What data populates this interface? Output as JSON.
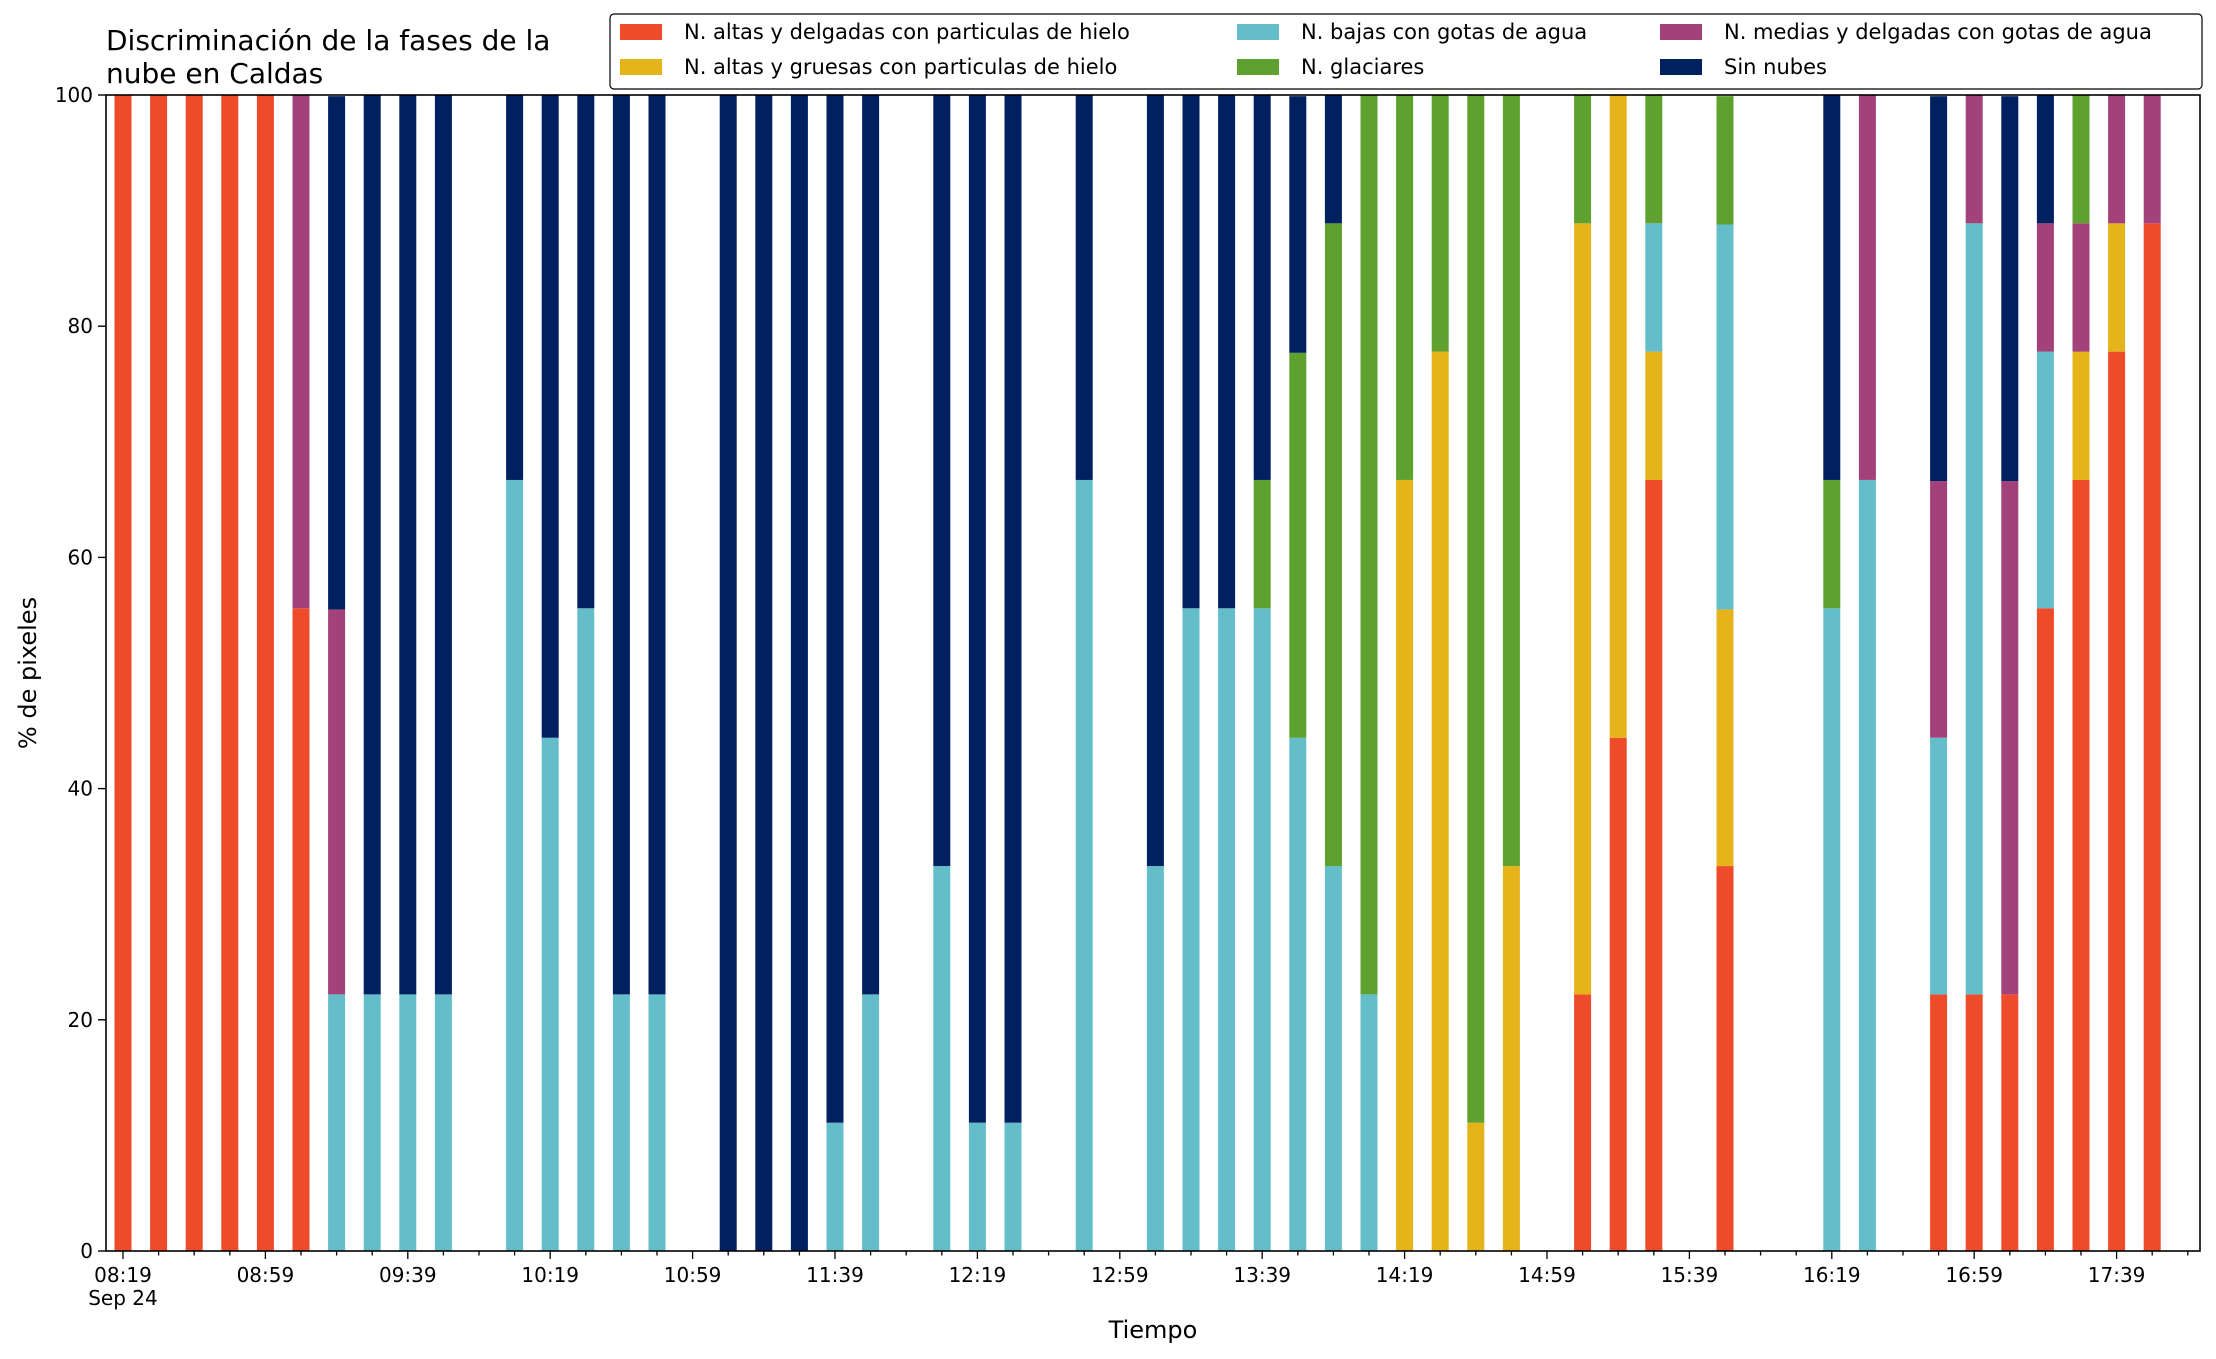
{
  "chart_data": {
    "type": "bar",
    "stacked": true,
    "title": "Discriminación de la fases de la\nnube en Caldas",
    "xlabel": "Tiempo",
    "ylabel": "% de pixeles",
    "ylim": [
      0,
      100
    ],
    "yticks": [
      0,
      20,
      40,
      60,
      80,
      100
    ],
    "grid": false,
    "legend_position": "top-right",
    "legend_columns": 3,
    "time_axis": {
      "start": "08:19",
      "end": "17:59",
      "step_minutes": 10,
      "major_step_minutes": 40,
      "labels": [
        "08:19",
        "08:59",
        "09:39",
        "10:19",
        "10:59",
        "11:39",
        "12:19",
        "12:59",
        "13:39",
        "14:19",
        "14:59",
        "15:39",
        "16:19",
        "16:59",
        "17:39"
      ],
      "first_label_date": "Sep 24"
    },
    "series_order": [
      "altas_delgadas",
      "altas_gruesas",
      "bajas_agua",
      "medias_agua",
      "glaciares",
      "sin_nubes"
    ],
    "series": [
      {
        "key": "altas_delgadas",
        "name": "N. altas y delgadas con particulas de hielo",
        "color": "#ee4b2b"
      },
      {
        "key": "altas_gruesas",
        "name": "N. altas y gruesas con particulas de hielo",
        "color": "#e5b41a"
      },
      {
        "key": "bajas_agua",
        "name": "N. bajas con gotas de agua",
        "color": "#63bec9"
      },
      {
        "key": "glaciares",
        "name": "N. glaciares",
        "color": "#5ea12e"
      },
      {
        "key": "medias_agua",
        "name": "N. medias y delgadas con gotas de agua",
        "color": "#a3427a"
      },
      {
        "key": "sin_nubes",
        "name": "Sin nubes",
        "color": "#00205f"
      }
    ],
    "bars": [
      {
        "time": "08:19",
        "altas_delgadas": 100
      },
      {
        "time": "08:29",
        "altas_delgadas": 100
      },
      {
        "time": "08:39",
        "altas_delgadas": 100
      },
      {
        "time": "08:49",
        "altas_delgadas": 100
      },
      {
        "time": "08:59",
        "altas_delgadas": 100
      },
      {
        "time": "09:09",
        "altas_delgadas": 55.6,
        "medias_agua": 44.4
      },
      {
        "time": "09:19",
        "bajas_agua": 22.2,
        "medias_agua": 33.3,
        "sin_nubes": 44.4
      },
      {
        "time": "09:29",
        "bajas_agua": 22.2,
        "sin_nubes": 77.8
      },
      {
        "time": "09:39",
        "bajas_agua": 22.2,
        "sin_nubes": 77.8
      },
      {
        "time": "09:49",
        "bajas_agua": 22.2,
        "sin_nubes": 77.8
      },
      {
        "time": "10:09",
        "bajas_agua": 66.7,
        "sin_nubes": 33.3
      },
      {
        "time": "10:19",
        "bajas_agua": 44.4,
        "sin_nubes": 55.6
      },
      {
        "time": "10:29",
        "bajas_agua": 55.6,
        "sin_nubes": 44.4
      },
      {
        "time": "10:39",
        "bajas_agua": 22.2,
        "sin_nubes": 77.8
      },
      {
        "time": "10:49",
        "bajas_agua": 22.2,
        "sin_nubes": 77.8
      },
      {
        "time": "11:09",
        "sin_nubes": 100
      },
      {
        "time": "11:19",
        "sin_nubes": 100
      },
      {
        "time": "11:29",
        "sin_nubes": 100
      },
      {
        "time": "11:39",
        "bajas_agua": 11.1,
        "sin_nubes": 88.9
      },
      {
        "time": "11:49",
        "bajas_agua": 22.2,
        "sin_nubes": 77.8
      },
      {
        "time": "12:09",
        "bajas_agua": 33.3,
        "sin_nubes": 66.7
      },
      {
        "time": "12:19",
        "bajas_agua": 11.1,
        "sin_nubes": 88.9
      },
      {
        "time": "12:29",
        "bajas_agua": 11.1,
        "sin_nubes": 88.9
      },
      {
        "time": "12:49",
        "bajas_agua": 66.7,
        "sin_nubes": 33.3
      },
      {
        "time": "13:09",
        "bajas_agua": 33.3,
        "sin_nubes": 66.7
      },
      {
        "time": "13:19",
        "bajas_agua": 55.6,
        "sin_nubes": 44.4
      },
      {
        "time": "13:29",
        "bajas_agua": 55.6,
        "sin_nubes": 44.4
      },
      {
        "time": "13:39",
        "bajas_agua": 55.6,
        "glaciares": 11.1,
        "sin_nubes": 33.3
      },
      {
        "time": "13:49",
        "bajas_agua": 44.4,
        "glaciares": 33.3,
        "sin_nubes": 22.2
      },
      {
        "time": "13:59",
        "bajas_agua": 33.3,
        "glaciares": 55.6,
        "sin_nubes": 11.1
      },
      {
        "time": "14:09",
        "bajas_agua": 22.2,
        "glaciares": 77.8
      },
      {
        "time": "14:19",
        "altas_gruesas": 66.7,
        "glaciares": 33.3
      },
      {
        "time": "14:29",
        "altas_gruesas": 77.8,
        "glaciares": 22.2
      },
      {
        "time": "14:39",
        "altas_gruesas": 11.1,
        "glaciares": 88.9
      },
      {
        "time": "14:49",
        "altas_gruesas": 33.3,
        "glaciares": 66.7
      },
      {
        "time": "15:09",
        "altas_delgadas": 22.2,
        "altas_gruesas": 66.7,
        "glaciares": 11.1
      },
      {
        "time": "15:19",
        "altas_delgadas": 44.4,
        "altas_gruesas": 55.6
      },
      {
        "time": "15:29",
        "altas_delgadas": 66.7,
        "altas_gruesas": 11.1,
        "bajas_agua": 11.1,
        "glaciares": 11.1
      },
      {
        "time": "15:49",
        "altas_delgadas": 33.3,
        "altas_gruesas": 22.2,
        "bajas_agua": 33.3,
        "glaciares": 11.1
      },
      {
        "time": "16:19",
        "bajas_agua": 55.6,
        "glaciares": 11.1,
        "sin_nubes": 33.3
      },
      {
        "time": "16:29",
        "bajas_agua": 66.7,
        "medias_agua": 33.3
      },
      {
        "time": "16:49",
        "altas_delgadas": 22.2,
        "bajas_agua": 22.2,
        "medias_agua": 22.2,
        "sin_nubes": 33.3
      },
      {
        "time": "16:59",
        "altas_delgadas": 22.2,
        "bajas_agua": 66.7,
        "medias_agua": 11.1
      },
      {
        "time": "17:09",
        "altas_delgadas": 22.2,
        "medias_agua": 44.4,
        "sin_nubes": 33.3
      },
      {
        "time": "17:19",
        "altas_delgadas": 55.6,
        "bajas_agua": 22.2,
        "medias_agua": 11.1,
        "sin_nubes": 11.1
      },
      {
        "time": "17:29",
        "altas_delgadas": 66.7,
        "altas_gruesas": 11.1,
        "glaciares": 11.1,
        "medias_agua": 11.1
      },
      {
        "time": "17:39",
        "altas_delgadas": 77.8,
        "altas_gruesas": 11.1,
        "medias_agua": 11.1
      },
      {
        "time": "17:49",
        "altas_delgadas": 88.9,
        "medias_agua": 11.1
      }
    ]
  }
}
